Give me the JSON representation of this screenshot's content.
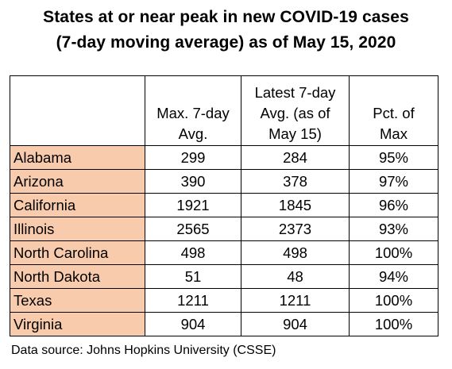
{
  "title_line1": "States at or near peak in new COVID-19 cases",
  "title_line2": "(7-day moving average) as of May 15, 2020",
  "columns": {
    "state": "",
    "max": [
      "Max. 7-day",
      "Avg."
    ],
    "latest": [
      "Latest 7-day",
      "Avg. (as of",
      "May 15)"
    ],
    "pct": [
      "Pct. of",
      "Max"
    ]
  },
  "rows": [
    {
      "state": "Alabama",
      "max": "299",
      "latest": "284",
      "pct": "95%"
    },
    {
      "state": "Arizona",
      "max": "390",
      "latest": "378",
      "pct": "97%"
    },
    {
      "state": "California",
      "max": "1921",
      "latest": "1845",
      "pct": "96%"
    },
    {
      "state": "Illinois",
      "max": "2565",
      "latest": "2373",
      "pct": "93%"
    },
    {
      "state": "North Carolina",
      "max": "498",
      "latest": "498",
      "pct": "100%"
    },
    {
      "state": "North Dakota",
      "max": "51",
      "latest": "48",
      "pct": "94%"
    },
    {
      "state": "Texas",
      "max": "1211",
      "latest": "1211",
      "pct": "100%"
    },
    {
      "state": "Virginia",
      "max": "904",
      "latest": "904",
      "pct": "100%"
    }
  ],
  "colors": {
    "state_cell_fill": "#f8cbad",
    "border": "#000000"
  },
  "source": "Data source: Johns Hopkins University (CSSE)",
  "chart_data": {
    "type": "table",
    "title": "States at or near peak in new COVID-19 cases (7-day moving average) as of May 15, 2020",
    "columns": [
      "",
      "Max. 7-day Avg.",
      "Latest 7-day Avg. (as of May 15)",
      "Pct. of Max"
    ],
    "categories": [
      "Alabama",
      "Arizona",
      "California",
      "Illinois",
      "North Carolina",
      "North Dakota",
      "Texas",
      "Virginia"
    ],
    "series": [
      {
        "name": "Max. 7-day Avg.",
        "values": [
          299,
          390,
          1921,
          2565,
          498,
          51,
          1211,
          904
        ]
      },
      {
        "name": "Latest 7-day Avg. (as of May 15)",
        "values": [
          284,
          378,
          1845,
          2373,
          498,
          48,
          1211,
          904
        ]
      },
      {
        "name": "Pct. of Max",
        "values": [
          "95%",
          "97%",
          "96%",
          "93%",
          "100%",
          "94%",
          "100%",
          "100%"
        ]
      }
    ]
  }
}
